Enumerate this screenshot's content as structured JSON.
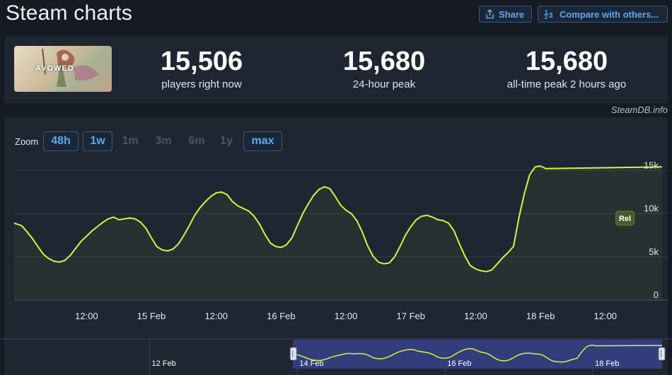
{
  "page": {
    "title": "Steam charts",
    "share_label": "Share",
    "compare_label": "Compare with others...",
    "credit": "SteamDB.info"
  },
  "game": {
    "logo_text": "AVOWED"
  },
  "stats": [
    {
      "value": "15,506",
      "label": "players right now"
    },
    {
      "value": "15,680",
      "label": "24-hour peak"
    },
    {
      "value": "15,680",
      "label": "all-time peak 2 hours ago"
    }
  ],
  "zoom": {
    "label": "Zoom",
    "options": [
      {
        "label": "48h",
        "active": true
      },
      {
        "label": "1w",
        "active": true
      },
      {
        "label": "1m",
        "active": false
      },
      {
        "label": "3m",
        "active": false
      },
      {
        "label": "6m",
        "active": false
      },
      {
        "label": "1y",
        "active": false
      },
      {
        "label": "max",
        "active": true
      }
    ]
  },
  "chart_data": {
    "type": "line",
    "line_color": "#d4f53c",
    "x_tick_labels": [
      "12:00",
      "15 Feb",
      "12:00",
      "16 Feb",
      "12:00",
      "17 Feb",
      "12:00",
      "18 Feb",
      "12:00"
    ],
    "x_tick_hours": [
      12,
      24,
      36,
      48,
      60,
      72,
      84,
      96,
      108
    ],
    "y_tick_labels": [
      "0",
      "5k",
      "10k",
      "15k"
    ],
    "ylim": [
      0,
      16000
    ],
    "x_range_hours": [
      -1.4,
      118.5
    ],
    "release_flag": {
      "label": "Rel",
      "hour": 111.5
    },
    "series": [
      {
        "points": [
          [
            -1.4,
            8900
          ],
          [
            0,
            8600
          ],
          [
            1,
            7900
          ],
          [
            2,
            7100
          ],
          [
            3,
            6200
          ],
          [
            4,
            5300
          ],
          [
            5,
            4800
          ],
          [
            6,
            4500
          ],
          [
            7,
            4400
          ],
          [
            8,
            4600
          ],
          [
            9,
            5200
          ],
          [
            10,
            6000
          ],
          [
            11,
            6800
          ],
          [
            12,
            7400
          ],
          [
            13,
            8000
          ],
          [
            14,
            8500
          ],
          [
            15,
            9000
          ],
          [
            16,
            9400
          ],
          [
            17,
            9600
          ],
          [
            18,
            9300
          ],
          [
            19,
            9400
          ],
          [
            20,
            9500
          ],
          [
            21,
            9400
          ],
          [
            22,
            9000
          ],
          [
            23,
            8300
          ],
          [
            24,
            7200
          ],
          [
            25,
            6200
          ],
          [
            26,
            5800
          ],
          [
            27,
            5700
          ],
          [
            28,
            5900
          ],
          [
            29,
            6500
          ],
          [
            30,
            7500
          ],
          [
            31,
            8600
          ],
          [
            32,
            9800
          ],
          [
            33,
            10700
          ],
          [
            34,
            11400
          ],
          [
            35,
            12000
          ],
          [
            36,
            12400
          ],
          [
            37,
            12500
          ],
          [
            38,
            12200
          ],
          [
            39,
            11400
          ],
          [
            40,
            10900
          ],
          [
            41,
            10600
          ],
          [
            42,
            10300
          ],
          [
            43,
            9700
          ],
          [
            44,
            8800
          ],
          [
            45,
            7600
          ],
          [
            46,
            6600
          ],
          [
            47,
            6200
          ],
          [
            48,
            6100
          ],
          [
            49,
            6400
          ],
          [
            50,
            7200
          ],
          [
            51,
            8600
          ],
          [
            52,
            10000
          ],
          [
            53,
            11100
          ],
          [
            54,
            12100
          ],
          [
            55,
            12800
          ],
          [
            56,
            13100
          ],
          [
            57,
            12900
          ],
          [
            58,
            12000
          ],
          [
            59,
            11000
          ],
          [
            60,
            10400
          ],
          [
            61,
            10000
          ],
          [
            62,
            9200
          ],
          [
            63,
            7900
          ],
          [
            64,
            6300
          ],
          [
            65,
            5100
          ],
          [
            66,
            4400
          ],
          [
            67,
            4200
          ],
          [
            68,
            4300
          ],
          [
            69,
            5000
          ],
          [
            70,
            6200
          ],
          [
            71,
            7500
          ],
          [
            72,
            8500
          ],
          [
            73,
            9300
          ],
          [
            74,
            9700
          ],
          [
            75,
            9800
          ],
          [
            76,
            9600
          ],
          [
            77,
            9300
          ],
          [
            78,
            9200
          ],
          [
            79,
            8900
          ],
          [
            80,
            8000
          ],
          [
            81,
            6500
          ],
          [
            82,
            5100
          ],
          [
            83,
            4000
          ],
          [
            84,
            3600
          ],
          [
            85,
            3400
          ],
          [
            86,
            3300
          ],
          [
            87,
            3500
          ],
          [
            88,
            4200
          ],
          [
            89,
            4900
          ],
          [
            90,
            5500
          ],
          [
            91,
            6200
          ],
          [
            92,
            9500
          ],
          [
            93,
            12300
          ],
          [
            94,
            14500
          ],
          [
            95,
            15400
          ],
          [
            96,
            15500
          ],
          [
            97,
            15200
          ],
          [
            118.5,
            15400
          ]
        ]
      }
    ]
  },
  "navigator": {
    "x_tick_labels": [
      "12 Feb",
      "14 Feb",
      "16 Feb",
      "18 Feb"
    ],
    "x_tick_hours": [
      -48,
      0,
      48,
      96
    ],
    "range_hours": [
      -1.4,
      118.5
    ],
    "window_color": "#3a4595"
  }
}
